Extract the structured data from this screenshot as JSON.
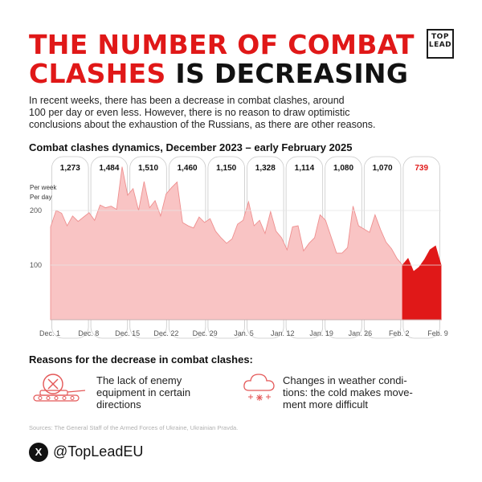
{
  "header": {
    "title_line1": "THE NUMBER OF COMBAT",
    "title_line2_red": "CLASHES",
    "title_line2_dark": "IS DECREASING",
    "logo_top": "TOP",
    "logo_bottom": "LEAD",
    "accent_color": "#e01818"
  },
  "intro": {
    "line1": "In recent weeks, there has been a decrease in combat clashes, around",
    "line2": "100 per day or even less. However, there is no reason to draw optimistic",
    "line3": "conclusions about the exhaustion of the Russians, as there are other reasons."
  },
  "chart_data": {
    "type": "area",
    "title": "Combat clashes dynamics, December 2023 – early February 2025",
    "legend_per_week": "Per week",
    "legend_per_day": "Per day",
    "y_ticks": [
      "200",
      "100"
    ],
    "ylim": [
      0,
      300
    ],
    "x_tick_labels": [
      "Dec. 1",
      "Dec. 8",
      "Dec. 15",
      "Dec. 22",
      "Dec. 29",
      "Jan. 5",
      "Jan. 12",
      "Jan. 19",
      "Jan. 26",
      "Feb. 2",
      "Feb. 9"
    ],
    "weekly_totals": [
      "1,273",
      "1,484",
      "1,510",
      "1,460",
      "1,150",
      "1,328",
      "1,114",
      "1,080",
      "1,070",
      "739"
    ],
    "highlight_last_week": true,
    "series_color": "#f9c4c4",
    "highlight_color": "#e01818",
    "daily_values": [
      170,
      200,
      195,
      172,
      190,
      180,
      188,
      196,
      182,
      210,
      205,
      208,
      202,
      280,
      228,
      240,
      200,
      253,
      205,
      218,
      190,
      230,
      242,
      252,
      178,
      172,
      168,
      188,
      178,
      185,
      162,
      150,
      140,
      148,
      175,
      182,
      216,
      172,
      182,
      158,
      198,
      162,
      150,
      128,
      170,
      172,
      126,
      140,
      150,
      192,
      182,
      152,
      122,
      122,
      132,
      208,
      172,
      166,
      160,
      192,
      165,
      142,
      130,
      112,
      100,
      112,
      88,
      96,
      110,
      128,
      135,
      100
    ],
    "highlight_start_index": 64
  },
  "reasons": {
    "title": "Reasons for the decrease in combat clashes:",
    "r1_line1": "The lack of enemy",
    "r1_line2": "equipment in certain",
    "r1_line3": "directions",
    "r2_line1": "Changes in weather condi-",
    "r2_line2": "tions: the cold makes move-",
    "r2_line3": "ment more difficult"
  },
  "footer": {
    "sources": "Sources: The General Staff of the Armed Forces of Ukraine, Ukrainian Pravda.",
    "x_glyph": "X",
    "handle": "@TopLeadEU"
  }
}
